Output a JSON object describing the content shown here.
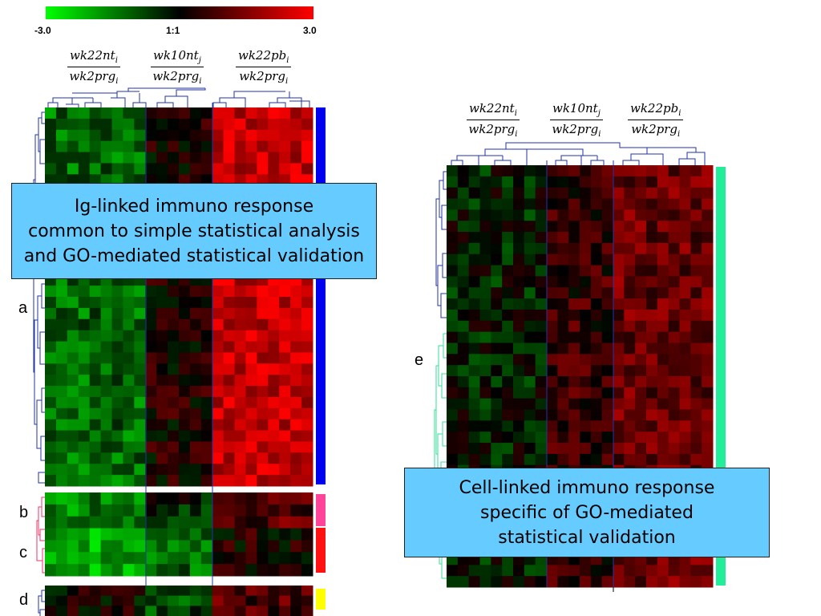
{
  "colors": {
    "low": "#00ff00",
    "mid": "#000000",
    "high": "#ff0000",
    "dendro_left": "#2233aa",
    "dendro_right": "#33dd99",
    "callout_bg": "#66ccff",
    "bar_a": "#0000ee",
    "bar_b": "#ff4499",
    "bar_c": "#ff1111",
    "bar_d": "#ffff00",
    "bar_e": "#22ee99"
  },
  "color_scale": {
    "min_label": "-3.0",
    "mid_label": "1:1",
    "max_label": "3.0",
    "min": -3.0,
    "max": 3.0
  },
  "left_column_headers": [
    {
      "num": "wk22nt",
      "num_sub": "i",
      "den": "wk2prg",
      "den_sub": "i"
    },
    {
      "num": "wk10nt",
      "num_sub": "j",
      "den": "wk2prg",
      "den_sub": "i"
    },
    {
      "num": "wk22pb",
      "num_sub": "i",
      "den": "wk2prg",
      "den_sub": "i"
    }
  ],
  "right_column_headers": [
    {
      "num": "wk22nt",
      "num_sub": "i",
      "den": "wk2prg",
      "den_sub": "i"
    },
    {
      "num": "wk10nt",
      "num_sub": "j",
      "den": "wk2prg",
      "den_sub": "i"
    },
    {
      "num": "wk22pb",
      "num_sub": "i",
      "den": "wk2prg",
      "den_sub": "i"
    }
  ],
  "clusters": {
    "a": {
      "label": "a",
      "group_means": [
        -1.2,
        0.3,
        2.3
      ]
    },
    "b": {
      "label": "b",
      "group_means": [
        -1.5,
        -0.3,
        1.0
      ]
    },
    "c": {
      "label": "c",
      "group_means": [
        -2.0,
        -1.2,
        0.3
      ]
    },
    "d": {
      "label": "d",
      "group_means": [
        0.1,
        -0.8,
        0.9
      ]
    },
    "e": {
      "label": "e",
      "group_means": [
        -0.3,
        0.6,
        1.2
      ]
    }
  },
  "callouts": {
    "left": "Ig-linked immuno response\ncommon to simple statistical analysis\nand GO-mediated statistical validation",
    "right": "Cell-linked immuno response\nspecific of GO-mediated\nstatistical validation"
  }
}
